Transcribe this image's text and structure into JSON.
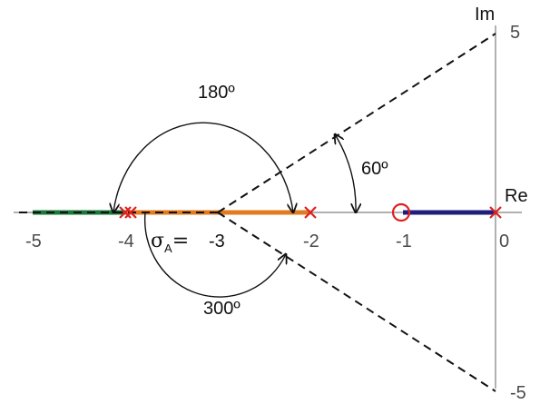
{
  "axes": {
    "real_label": "Re",
    "imag_label": "Im",
    "imag_top_tick": "5",
    "imag_bottom_tick": "-5"
  },
  "real_ticks": [
    {
      "value": -5,
      "label": "-5"
    },
    {
      "value": -4,
      "label": "-4"
    },
    {
      "value": -3,
      "label": "-3"
    },
    {
      "value": -2,
      "label": "-2"
    },
    {
      "value": -1,
      "label": "-1"
    },
    {
      "value": 0,
      "label": "0"
    }
  ],
  "asymptotes": {
    "centroid": -3,
    "centroid_symbol": "σ",
    "centroid_subscript": "A",
    "centroid_equals": "=",
    "angles": [
      {
        "label": "180º",
        "deg": 180
      },
      {
        "label": "60º",
        "deg": 60
      },
      {
        "label": "300º",
        "deg": 300
      }
    ]
  },
  "poles": [
    0,
    -2,
    -4,
    -4
  ],
  "zeros": [
    -1
  ],
  "locus_segments": [
    {
      "from": -1,
      "to": 0,
      "color": "#1f1f7a"
    },
    {
      "from": -4,
      "to": -2,
      "color": "#e07b20"
    },
    {
      "from": -5,
      "to": -4,
      "color": "#1a7a3a"
    }
  ],
  "colors": {
    "pole_marker": "#e02020",
    "zero_marker": "#e02020",
    "axis": "#808080",
    "asymptote": "#111111"
  }
}
